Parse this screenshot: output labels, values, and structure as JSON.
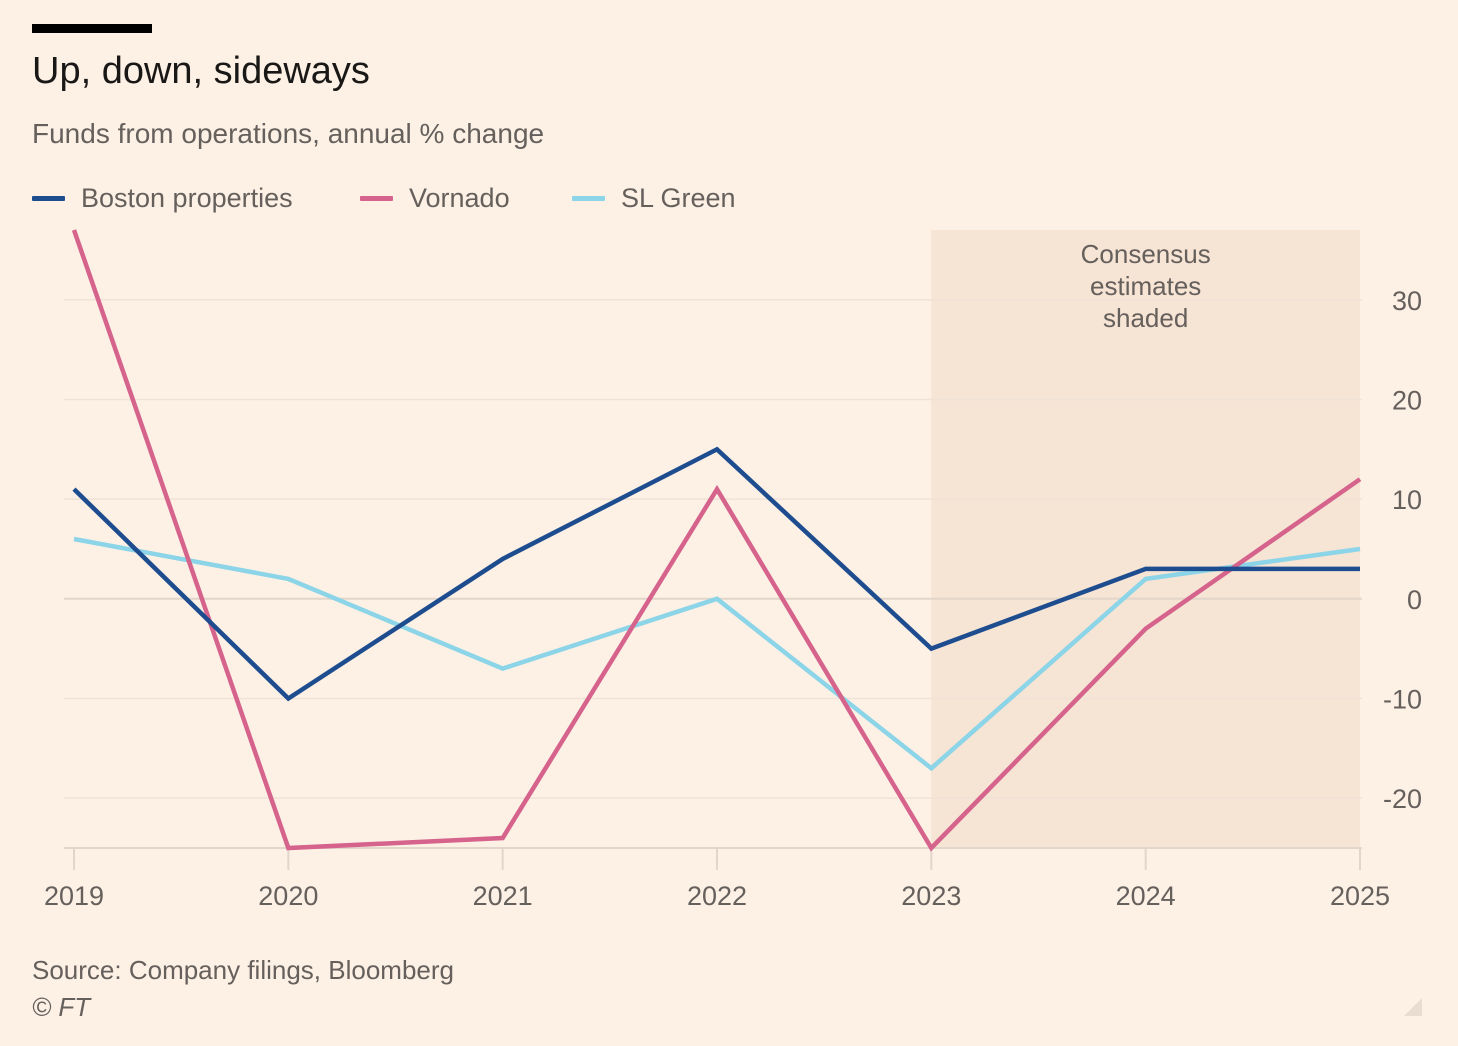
{
  "header": {
    "title": "Up, down, sideways",
    "subtitle": "Funds from operations, annual % change"
  },
  "footer": {
    "source": "Source: Company filings, Bloomberg",
    "credit": "© FT"
  },
  "colors": {
    "background": "#FDF1E6",
    "shaded_region": "#F6E4D5",
    "gridline": "#F0E2D6",
    "axis": "#E2D5CA",
    "text": "#66605C"
  },
  "chart_data": {
    "type": "line",
    "x": [
      "2019",
      "2020",
      "2021",
      "2022",
      "2023",
      "2024",
      "2025"
    ],
    "xlim": [
      2019,
      2025
    ],
    "ylim": [
      -25,
      37
    ],
    "yticks": [
      -20,
      -10,
      0,
      10,
      20,
      30
    ],
    "ytick_labels": [
      "-20",
      "-10",
      "0",
      "10",
      "20",
      "30"
    ],
    "grid": true,
    "legend_position": "top-left",
    "series": [
      {
        "name": "Boston properties",
        "color": "#1E4D8F",
        "values": [
          11,
          -10,
          4,
          15,
          -5,
          3,
          3
        ]
      },
      {
        "name": "Vornado",
        "color": "#D5638C",
        "values": [
          37,
          -25,
          -24,
          11,
          -25,
          -3,
          12
        ]
      },
      {
        "name": "SL Green",
        "color": "#8CD4E7",
        "values": [
          6,
          2,
          -7,
          0,
          -17,
          2,
          5
        ]
      }
    ],
    "shaded_region": {
      "x_start": 2023,
      "x_end": 2025,
      "label_lines": [
        "Consensus",
        "estimates",
        "shaded"
      ]
    }
  }
}
